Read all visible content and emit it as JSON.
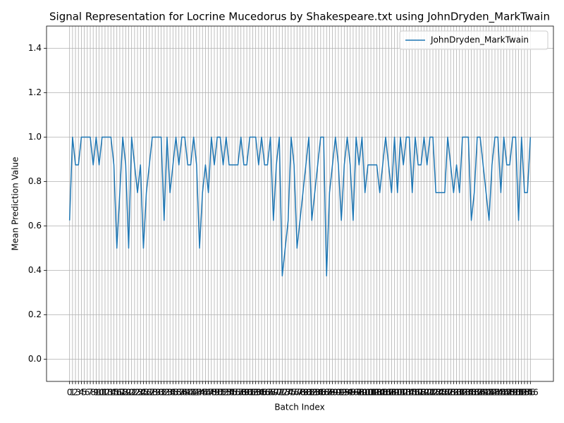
{
  "chart_data": {
    "type": "line",
    "title": "Signal Representation for Locrine Mucedorus by Shakespeare.txt using JohnDryden_MarkTwain",
    "xlabel": "Batch Index",
    "ylabel": "Mean Prediction Value",
    "x": [
      0,
      1,
      2,
      3,
      4,
      5,
      6,
      7,
      8,
      9,
      10,
      11,
      12,
      13,
      14,
      15,
      16,
      17,
      18,
      19,
      20,
      21,
      22,
      23,
      24,
      25,
      26,
      27,
      28,
      29,
      30,
      31,
      32,
      33,
      34,
      35,
      36,
      37,
      38,
      39,
      40,
      41,
      42,
      43,
      44,
      45,
      46,
      47,
      48,
      49,
      50,
      51,
      52,
      53,
      54,
      55,
      56,
      57,
      58,
      59,
      60,
      61,
      62,
      63,
      64,
      65,
      66,
      67,
      68,
      69,
      70,
      71,
      72,
      73,
      74,
      75,
      76,
      77,
      78,
      79,
      80,
      81,
      82,
      83,
      84,
      85,
      86,
      87,
      88,
      89,
      90,
      91,
      92,
      93,
      94,
      95,
      96,
      97,
      98,
      99,
      100,
      101,
      102,
      103,
      104,
      105,
      106,
      107,
      108,
      109,
      110,
      111,
      112,
      113,
      114,
      115,
      116,
      117,
      118,
      119,
      120,
      121,
      122,
      123,
      124,
      125,
      126,
      127,
      128,
      129,
      130,
      131,
      132,
      133,
      134,
      135,
      136,
      137,
      138,
      139,
      140,
      141,
      142,
      143,
      144,
      145,
      146,
      147,
      148,
      149,
      150,
      151,
      152,
      153,
      154,
      155,
      156
    ],
    "series": [
      {
        "name": "JohnDryden_MarkTwain",
        "color": "#1f77b4",
        "values": [
          0.625,
          1,
          0.875,
          0.875,
          1,
          1,
          1,
          1,
          0.875,
          1,
          0.875,
          1,
          1,
          1,
          1,
          0.875,
          0.5,
          0.75,
          1,
          0.875,
          0.5,
          1,
          0.875,
          0.75,
          0.875,
          0.5,
          0.75,
          0.875,
          1,
          1,
          1,
          1,
          0.625,
          1,
          0.75,
          0.875,
          1,
          0.875,
          1,
          1,
          0.875,
          0.875,
          1,
          0.875,
          0.5,
          0.75,
          0.875,
          0.75,
          1,
          0.875,
          1,
          1,
          0.875,
          1,
          0.875,
          0.875,
          0.875,
          0.875,
          1,
          0.875,
          0.875,
          1,
          1,
          1,
          0.875,
          1,
          0.875,
          0.875,
          1,
          0.625,
          0.875,
          1,
          0.375,
          0.5,
          0.625,
          1,
          0.875,
          0.5,
          0.625,
          0.75,
          0.875,
          1,
          0.625,
          0.75,
          0.875,
          1,
          1,
          0.375,
          0.75,
          0.875,
          1,
          0.875,
          0.625,
          0.875,
          1,
          0.875,
          0.625,
          1,
          0.875,
          1,
          0.75,
          0.875,
          0.875,
          0.875,
          0.875,
          0.75,
          0.875,
          1,
          0.875,
          0.75,
          1,
          0.75,
          1,
          0.875,
          1,
          1,
          0.75,
          1,
          0.875,
          0.875,
          1,
          0.875,
          1,
          1,
          0.75,
          0.75,
          0.75,
          0.75,
          1,
          0.875,
          0.75,
          0.875,
          0.75,
          1,
          1,
          1,
          0.625,
          0.75,
          1,
          1,
          0.875,
          0.75,
          0.625,
          0.875,
          1,
          1,
          0.75,
          1,
          0.875,
          0.875,
          1,
          1,
          0.625,
          1,
          0.75,
          0.75,
          1
        ]
      }
    ],
    "xlim": [
      -7.8,
      163.8
    ],
    "ylim": [
      -0.1,
      1.5
    ],
    "xticks": [
      0,
      1,
      2,
      3,
      4,
      5,
      6,
      7,
      8,
      9,
      10,
      11,
      12,
      13,
      14,
      15,
      16,
      17,
      18,
      19,
      20,
      21,
      22,
      23,
      24,
      25,
      26,
      27,
      28,
      29,
      30,
      31,
      32,
      33,
      34,
      35,
      36,
      37,
      38,
      39,
      40,
      41,
      42,
      43,
      44,
      45,
      46,
      47,
      48,
      49,
      50,
      51,
      52,
      53,
      54,
      55,
      56,
      57,
      58,
      59,
      60,
      61,
      62,
      63,
      64,
      65,
      66,
      67,
      68,
      69,
      70,
      71,
      72,
      73,
      74,
      75,
      76,
      77,
      78,
      79,
      80,
      81,
      82,
      83,
      84,
      85,
      86,
      87,
      88,
      89,
      90,
      91,
      92,
      93,
      94,
      95,
      96,
      97,
      98,
      99,
      100,
      101,
      102,
      103,
      104,
      105,
      106,
      107,
      108,
      109,
      110,
      111,
      112,
      113,
      114,
      115,
      116,
      117,
      118,
      119,
      120,
      121,
      122,
      123,
      124,
      125,
      126,
      127,
      128,
      129,
      130,
      131,
      132,
      133,
      134,
      135,
      136,
      137,
      138,
      139,
      140,
      141,
      142,
      143,
      144,
      145,
      146,
      147,
      148,
      149,
      150,
      151,
      152,
      153,
      154,
      155,
      156
    ],
    "yticks": [
      {
        "value": 0,
        "label": "0.0"
      },
      {
        "value": 0.2,
        "label": "0.2"
      },
      {
        "value": 0.4,
        "label": "0.4"
      },
      {
        "value": 0.6,
        "label": "0.6"
      },
      {
        "value": 0.8,
        "label": "0.8"
      },
      {
        "value": 1.0,
        "label": "1.0"
      },
      {
        "value": 1.2,
        "label": "1.2"
      },
      {
        "value": 1.4,
        "label": "1.4"
      }
    ],
    "grid": true,
    "legend": "upper right"
  }
}
